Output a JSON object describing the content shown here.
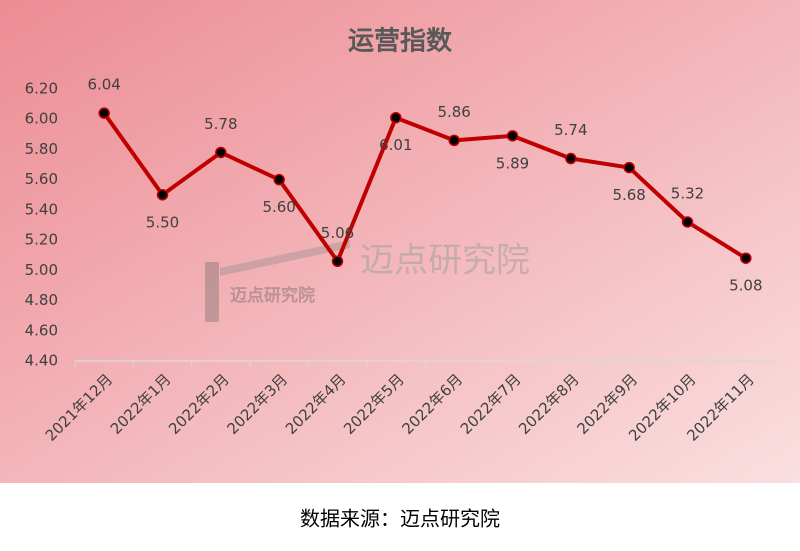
{
  "chart_data": {
    "type": "line",
    "title": "运营指数",
    "categories": [
      "2021年12月",
      "2022年1月",
      "2022年2月",
      "2022年3月",
      "2022年4月",
      "2022年5月",
      "2022年6月",
      "2022年7月",
      "2022年8月",
      "2022年9月",
      "2022年10月",
      "2022年11月"
    ],
    "values": [
      6.04,
      5.5,
      5.78,
      5.6,
      5.06,
      6.01,
      5.86,
      5.89,
      5.74,
      5.68,
      5.32,
      5.08
    ],
    "value_labels": [
      "6.04",
      "5.50",
      "5.78",
      "5.60",
      "5.06",
      "6.01",
      "5.86",
      "5.89",
      "5.74",
      "5.68",
      "5.32",
      "5.08"
    ],
    "color": "#c00000",
    "ylim": [
      4.4,
      6.2
    ],
    "yticks": [
      {
        "value": 4.4,
        "label": "4.40"
      },
      {
        "value": 4.6,
        "label": "4.60"
      },
      {
        "value": 4.8,
        "label": "4.80"
      },
      {
        "value": 5.0,
        "label": "5.00"
      },
      {
        "value": 5.2,
        "label": "5.20"
      },
      {
        "value": 5.4,
        "label": "5.40"
      },
      {
        "value": 5.6,
        "label": "5.60"
      },
      {
        "value": 5.8,
        "label": "5.80"
      },
      {
        "value": 6.0,
        "label": "6.00"
      },
      {
        "value": 6.2,
        "label": "6.20"
      }
    ],
    "grid": false,
    "watermark": "迈点研究院",
    "source": "数据来源：迈点研究院"
  }
}
